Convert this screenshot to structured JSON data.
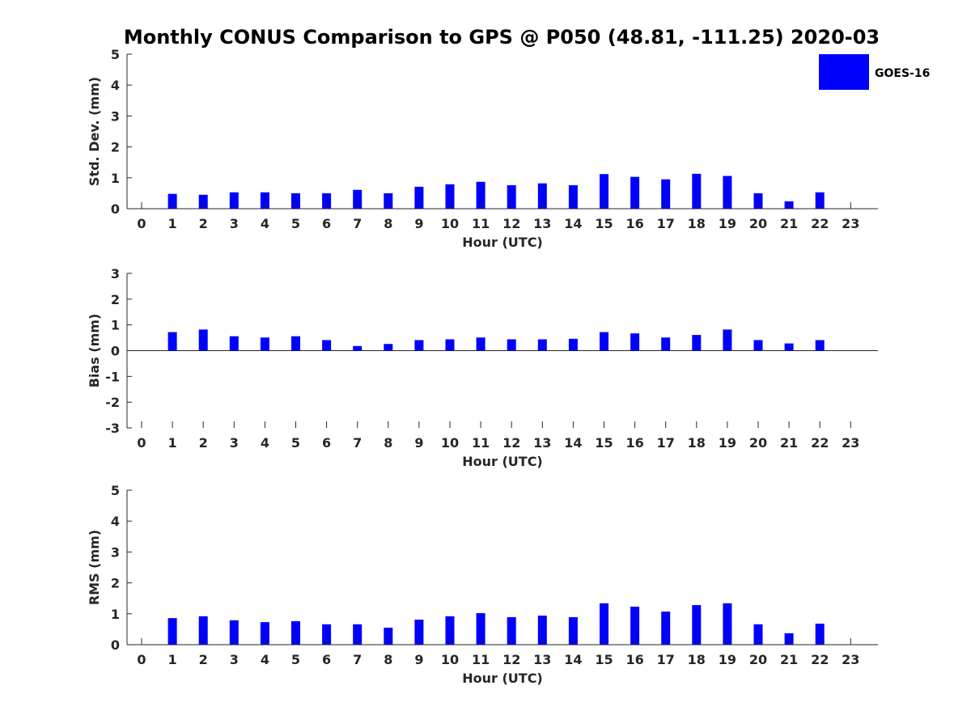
{
  "figure": {
    "title": "Monthly CONUS Comparison to GPS @ P050 (48.81, -111.25) 2020-03",
    "legend": {
      "label": "GOES-16",
      "color": "#0000ff",
      "placement": "top-right"
    }
  },
  "chart_data": [
    {
      "type": "bar",
      "xlabel": "Hour (UTC)",
      "ylabel": "Std. Dev. (mm)",
      "categories": [
        "0",
        "1",
        "2",
        "3",
        "4",
        "5",
        "6",
        "7",
        "8",
        "9",
        "10",
        "11",
        "12",
        "13",
        "14",
        "15",
        "16",
        "17",
        "18",
        "19",
        "20",
        "21",
        "22",
        "23"
      ],
      "series": [
        {
          "name": "GOES-16",
          "color": "#0000ff",
          "values": [
            null,
            0.48,
            0.45,
            0.53,
            0.53,
            0.5,
            0.5,
            0.61,
            0.5,
            0.71,
            0.79,
            0.87,
            0.76,
            0.82,
            0.76,
            1.12,
            1.03,
            0.95,
            1.13,
            1.06,
            0.5,
            0.24,
            0.53,
            null
          ]
        }
      ],
      "ylim": [
        0,
        5
      ],
      "yticks": [
        "0",
        "1",
        "2",
        "3",
        "4",
        "5"
      ],
      "grid": false
    },
    {
      "type": "bar",
      "xlabel": "Hour (UTC)",
      "ylabel": "Bias (mm)",
      "categories": [
        "0",
        "1",
        "2",
        "3",
        "4",
        "5",
        "6",
        "7",
        "8",
        "9",
        "10",
        "11",
        "12",
        "13",
        "14",
        "15",
        "16",
        "17",
        "18",
        "19",
        "20",
        "21",
        "22",
        "23"
      ],
      "series": [
        {
          "name": "GOES-16",
          "color": "#0000ff",
          "values": [
            null,
            0.72,
            0.82,
            0.56,
            0.51,
            0.56,
            0.41,
            0.18,
            0.26,
            0.41,
            0.44,
            0.51,
            0.44,
            0.44,
            0.46,
            0.72,
            0.67,
            0.51,
            0.61,
            0.82,
            0.41,
            0.28,
            0.41,
            null
          ]
        }
      ],
      "ylim": [
        -3,
        3
      ],
      "yticks": [
        "-3",
        "-2",
        "-1",
        "0",
        "1",
        "2",
        "3"
      ],
      "grid": false
    },
    {
      "type": "bar",
      "xlabel": "Hour (UTC)",
      "ylabel": "RMS (mm)",
      "categories": [
        "0",
        "1",
        "2",
        "3",
        "4",
        "5",
        "6",
        "7",
        "8",
        "9",
        "10",
        "11",
        "12",
        "13",
        "14",
        "15",
        "16",
        "17",
        "18",
        "19",
        "20",
        "21",
        "22",
        "23"
      ],
      "series": [
        {
          "name": "GOES-16",
          "color": "#0000ff",
          "values": [
            null,
            0.86,
            0.92,
            0.79,
            0.73,
            0.76,
            0.66,
            0.66,
            0.55,
            0.81,
            0.92,
            1.02,
            0.89,
            0.94,
            0.89,
            1.34,
            1.23,
            1.07,
            1.28,
            1.34,
            0.66,
            0.37,
            0.68,
            null
          ]
        }
      ],
      "ylim": [
        0,
        5
      ],
      "yticks": [
        "0",
        "1",
        "2",
        "3",
        "4",
        "5"
      ],
      "grid": false
    }
  ]
}
